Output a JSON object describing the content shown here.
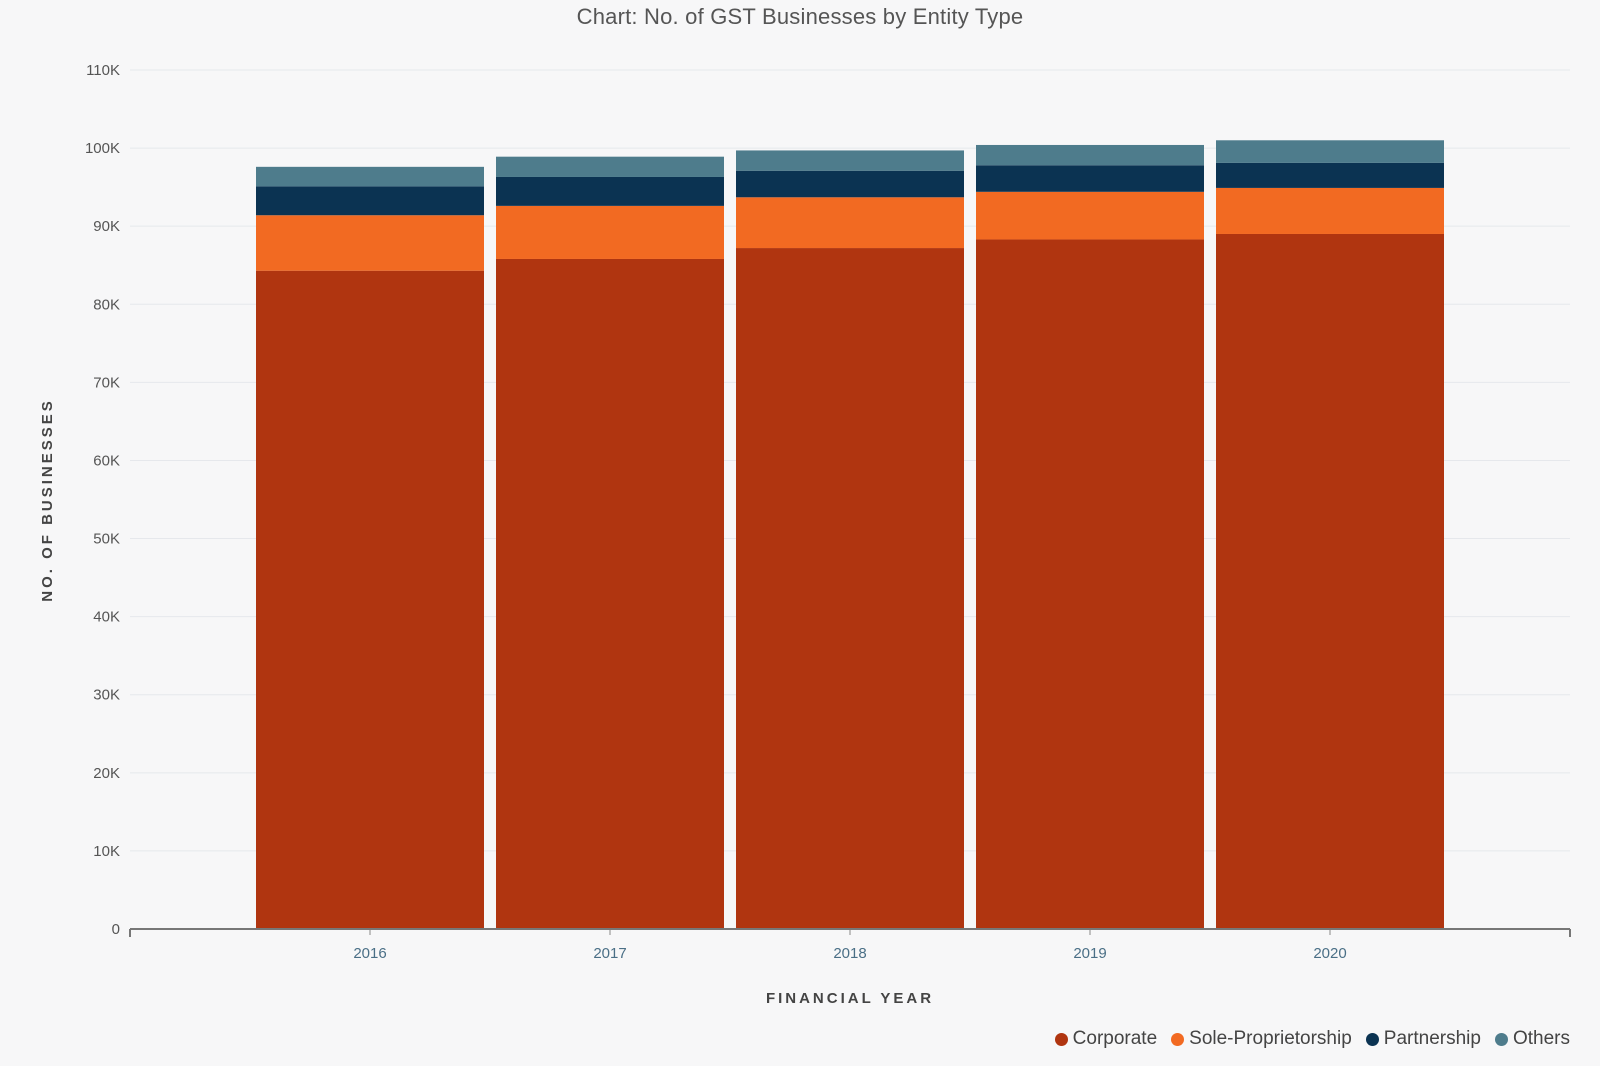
{
  "chart_data": {
    "type": "bar",
    "stacked": true,
    "title": "Chart: No. of GST Businesses by Entity Type",
    "xlabel": "FINANCIAL YEAR",
    "ylabel": "NO. OF BUSINESSES",
    "ylim": [
      0,
      110000
    ],
    "y_ticks": [
      0,
      10000,
      20000,
      30000,
      40000,
      50000,
      60000,
      70000,
      80000,
      90000,
      100000,
      110000
    ],
    "y_tick_labels": [
      "0",
      "10K",
      "20K",
      "30K",
      "40K",
      "50K",
      "60K",
      "70K",
      "80K",
      "90K",
      "100K",
      "110K"
    ],
    "grid": true,
    "legend_position": "bottom-right",
    "categories": [
      "2016",
      "2017",
      "2018",
      "2019",
      "2020"
    ],
    "series": [
      {
        "name": "Corporate",
        "color": "#b03510",
        "values": [
          84300,
          85800,
          87200,
          88300,
          89000
        ]
      },
      {
        "name": "Sole-Proprietorship",
        "color": "#f26a22",
        "values": [
          7100,
          6800,
          6500,
          6100,
          5900
        ]
      },
      {
        "name": "Partnership",
        "color": "#0b3352",
        "values": [
          3700,
          3700,
          3400,
          3400,
          3200
        ]
      },
      {
        "name": "Others",
        "color": "#4e7c8c",
        "values": [
          2500,
          2600,
          2600,
          2600,
          2900
        ]
      }
    ]
  }
}
